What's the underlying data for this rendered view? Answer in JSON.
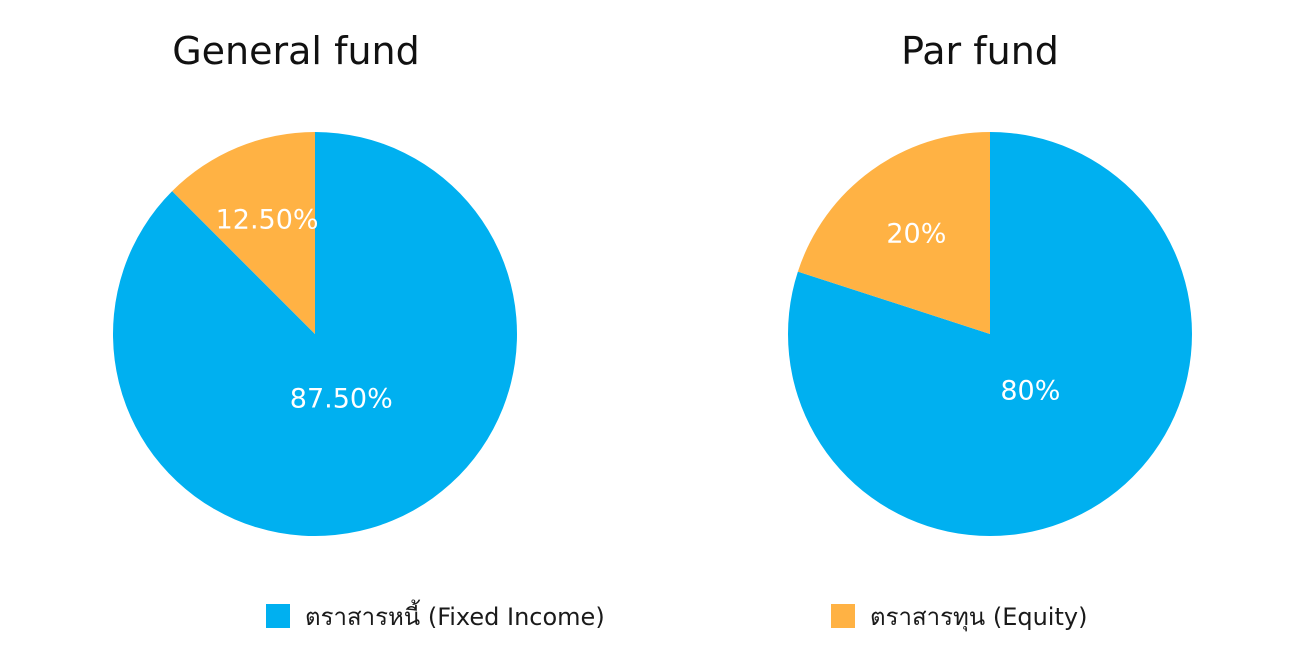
{
  "chart_data": [
    {
      "type": "pie",
      "title": "General fund",
      "slices": [
        {
          "label": "ตราสารหนี้ (Fixed Income)",
          "value": 87.5,
          "display": "87.50%",
          "color": "#00B0F0"
        },
        {
          "label": "ตราสารทุน (Equity)",
          "value": 12.5,
          "display": "12.50%",
          "color": "#FFB244"
        }
      ],
      "legend_position": "bottom"
    },
    {
      "type": "pie",
      "title": "Par fund",
      "slices": [
        {
          "label": "ตราสารหนี้ (Fixed Income)",
          "value": 80,
          "display": "80%",
          "color": "#00B0F0"
        },
        {
          "label": "ตราสารทุน (Equity)",
          "value": 20,
          "display": "20%",
          "color": "#FFB244"
        }
      ],
      "legend_position": "bottom"
    }
  ],
  "legend": [
    {
      "label": "ตราสารหนี้ (Fixed Income)",
      "color": "#00B0F0"
    },
    {
      "label": "ตราสารทุน (Equity)",
      "color": "#FFB244"
    }
  ]
}
